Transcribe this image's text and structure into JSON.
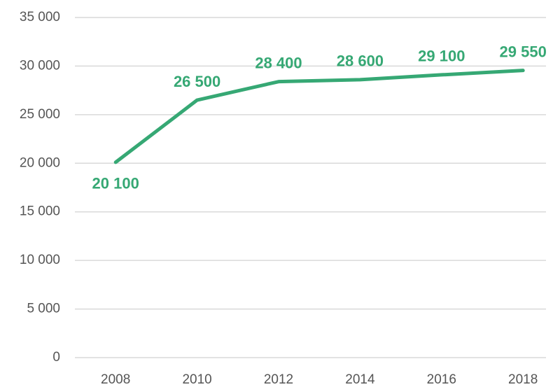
{
  "chart_data": {
    "type": "line",
    "categories": [
      "2008",
      "2010",
      "2012",
      "2014",
      "2016",
      "2018"
    ],
    "series": [
      {
        "color": "#36a874",
        "values": [
          20100,
          26500,
          28400,
          28600,
          29100,
          29550
        ],
        "value_labels": [
          "20 100",
          "26 500",
          "28 400",
          "28 600",
          "29 100",
          "29 550"
        ]
      }
    ],
    "ylim": [
      0,
      35000
    ],
    "yticks": [
      0,
      {
        "value": 5000,
        "label": "5 000"
      },
      {
        "value": 10000,
        "label": "10 000"
      },
      {
        "value": 15000,
        "label": "15 000"
      },
      {
        "value": 20000,
        "label": "20 000"
      },
      {
        "value": 25000,
        "label": "25 000"
      },
      {
        "value": 30000,
        "label": "30 000"
      },
      {
        "value": 35000,
        "label": "35 000"
      }
    ],
    "grid": true
  }
}
